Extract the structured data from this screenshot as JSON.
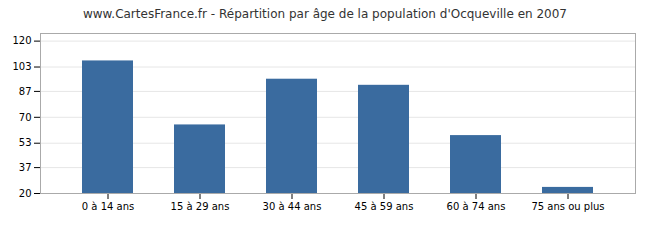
{
  "chart_data": {
    "type": "bar",
    "title": "www.CartesFrance.fr - Répartition par âge de la population d'Ocqueville en 2007",
    "categories": [
      "0 à 14 ans",
      "15 à 29 ans",
      "30 à 44 ans",
      "45 à 59 ans",
      "60 à 74 ans",
      "75 ans ou plus"
    ],
    "values": [
      107,
      65,
      95,
      91,
      58,
      24
    ],
    "color": "#3a6b9f",
    "ylim": [
      20,
      125
    ],
    "yticks": [
      20,
      37,
      53,
      70,
      87,
      103,
      120
    ],
    "grid": true
  }
}
